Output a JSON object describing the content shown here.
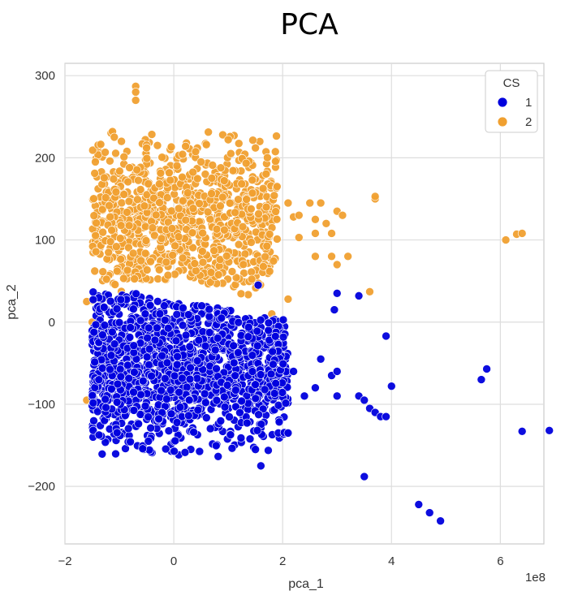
{
  "chart_data": {
    "type": "scatter",
    "title": "PCA",
    "xlabel": "pca_1",
    "ylabel": "pca_2",
    "x_scale_label": "1e8",
    "xlim": [
      -2.0,
      6.8
    ],
    "ylim": [
      -270,
      315
    ],
    "x_ticks": [
      -2,
      0,
      2,
      4,
      6
    ],
    "x_tick_labels": [
      "−2",
      "0",
      "2",
      "4",
      "6"
    ],
    "y_ticks": [
      300,
      200,
      100,
      0,
      -100,
      -200
    ],
    "y_tick_labels": [
      "300",
      "200",
      "100",
      "0",
      "−100",
      "−200"
    ],
    "grid": true,
    "legend": {
      "title": "CS",
      "position": "top-right",
      "entries": [
        {
          "label": "1",
          "color": "#0000dd"
        },
        {
          "label": "2",
          "color": "#f0a030"
        }
      ]
    },
    "series": [
      {
        "name": "1",
        "color": "#0000dd",
        "cluster": {
          "x_range": [
            -1.5,
            2.1
          ],
          "y_range": [
            -165,
            50
          ],
          "approx_count": 1400
        },
        "outliers": [
          [
            2.2,
            -60
          ],
          [
            2.4,
            -90
          ],
          [
            2.6,
            -80
          ],
          [
            2.7,
            -45
          ],
          [
            2.9,
            -65
          ],
          [
            3.0,
            -60
          ],
          [
            3.0,
            -90
          ],
          [
            3.4,
            -90
          ],
          [
            3.5,
            -95
          ],
          [
            3.6,
            -105
          ],
          [
            3.7,
            -110
          ],
          [
            3.8,
            -115
          ],
          [
            3.9,
            -115
          ],
          [
            3.9,
            -17
          ],
          [
            4.0,
            -78
          ],
          [
            2.95,
            15
          ],
          [
            3.0,
            35
          ],
          [
            3.4,
            32
          ],
          [
            1.5,
            -155
          ],
          [
            1.6,
            -175
          ],
          [
            2.1,
            -135
          ],
          [
            3.5,
            -188
          ],
          [
            4.5,
            -222
          ],
          [
            4.7,
            -232
          ],
          [
            4.9,
            -242
          ],
          [
            5.65,
            -70
          ],
          [
            5.75,
            -57
          ],
          [
            6.4,
            -133
          ],
          [
            6.9,
            -132
          ],
          [
            1.55,
            45
          ]
        ]
      },
      {
        "name": "2",
        "color": "#f0a030",
        "cluster": {
          "x_range": [
            -1.5,
            1.9
          ],
          "y_range": [
            -10,
            232
          ],
          "approx_count": 900
        },
        "outliers": [
          [
            -0.7,
            287
          ],
          [
            -0.7,
            280
          ],
          [
            -0.7,
            270
          ],
          [
            -0.3,
            215
          ],
          [
            -0.5,
            212
          ],
          [
            0.5,
            195
          ],
          [
            0.9,
            228
          ],
          [
            1.0,
            222
          ],
          [
            1.5,
            212
          ],
          [
            1.7,
            140
          ],
          [
            2.1,
            145
          ],
          [
            2.2,
            128
          ],
          [
            2.3,
            130
          ],
          [
            2.5,
            145
          ],
          [
            2.6,
            125
          ],
          [
            2.6,
            108
          ],
          [
            2.7,
            145
          ],
          [
            2.8,
            120
          ],
          [
            2.9,
            108
          ],
          [
            3.0,
            135
          ],
          [
            2.3,
            103
          ],
          [
            2.6,
            80
          ],
          [
            2.9,
            80
          ],
          [
            3.0,
            70
          ],
          [
            3.1,
            130
          ],
          [
            3.7,
            150
          ],
          [
            3.7,
            153
          ],
          [
            3.6,
            37
          ],
          [
            3.2,
            80
          ],
          [
            2.1,
            28
          ],
          [
            1.8,
            10
          ],
          [
            6.1,
            100
          ],
          [
            6.3,
            107
          ],
          [
            6.4,
            108
          ],
          [
            -1.6,
            25
          ],
          [
            -1.6,
            -95
          ],
          [
            -1.5,
            0
          ]
        ]
      }
    ]
  }
}
